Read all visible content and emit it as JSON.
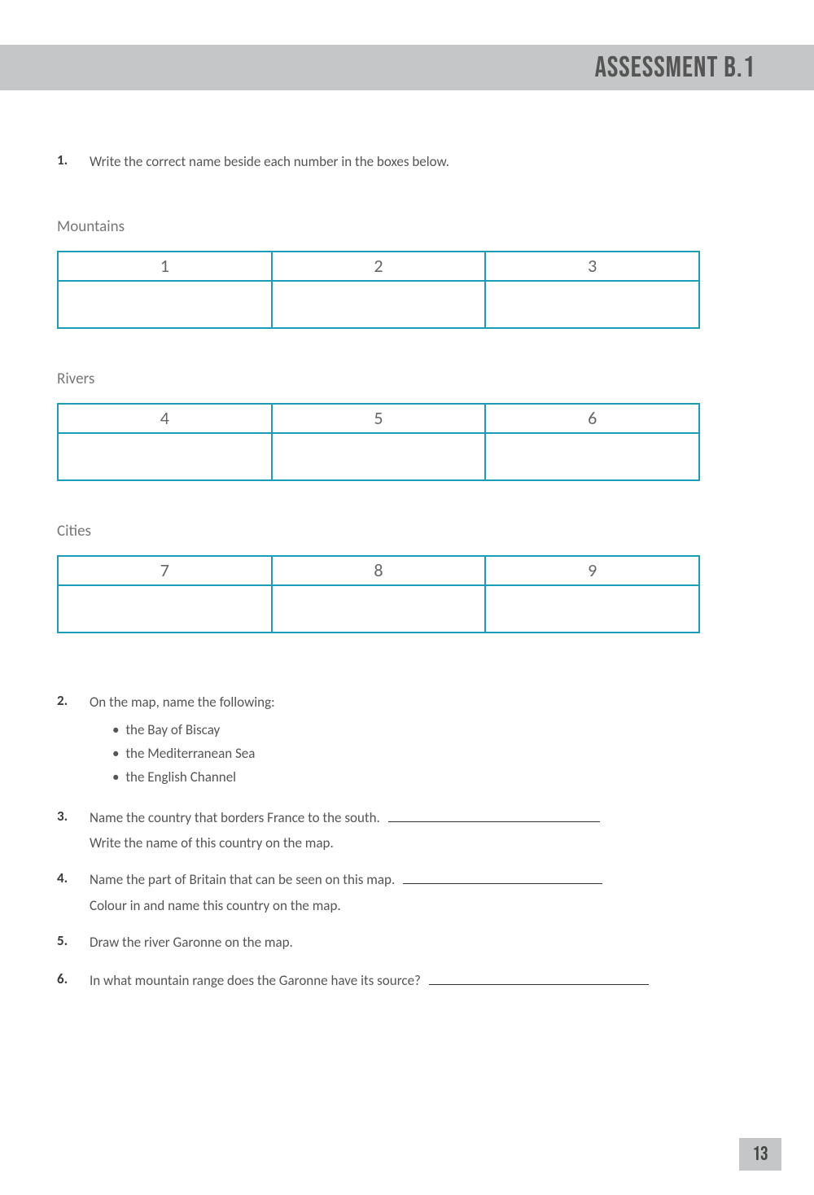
{
  "header": {
    "title": "Assessment B.1",
    "bar_color": "#c5c6c7",
    "title_color": "#555555"
  },
  "q1": {
    "number": "1.",
    "text": "Write the correct name beside each number in the boxes below."
  },
  "sections": {
    "mountains": {
      "label": "Mountains",
      "numbers": [
        "1",
        "2",
        "3"
      ]
    },
    "rivers": {
      "label": "Rivers",
      "numbers": [
        "4",
        "5",
        "6"
      ]
    },
    "cities": {
      "label": "Cities",
      "numbers": [
        "7",
        "8",
        "9"
      ]
    }
  },
  "q2": {
    "number": "2.",
    "text": "On the map, name the following:",
    "bullets": [
      "the Bay of Biscay",
      "the Mediterranean Sea",
      "the English Channel"
    ]
  },
  "q3": {
    "number": "3.",
    "text": "Name the country that borders France to the south.",
    "sub": "Write the name of this country on the map.",
    "underline_width": 260
  },
  "q4": {
    "number": "4.",
    "text": "Name the part of Britain that can be seen on this map.",
    "sub": "Colour in and name this country on the map.",
    "underline_width": 245
  },
  "q5": {
    "number": "5.",
    "text": "Draw the river Garonne on the map."
  },
  "q6": {
    "number": "6.",
    "text": "In what mountain range does the Garonne have its source?",
    "underline_width": 270
  },
  "table_style": {
    "border_color": "#1b9db9",
    "number_color": "#666666"
  },
  "page_number": "13"
}
